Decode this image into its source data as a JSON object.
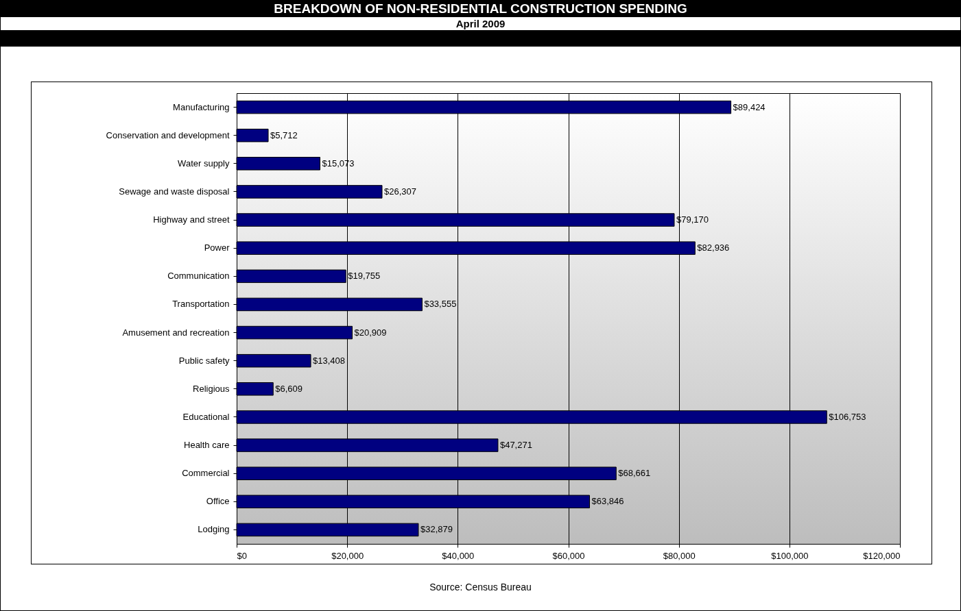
{
  "chart_data": {
    "type": "bar",
    "orientation": "horizontal",
    "title": "BREAKDOWN OF NON-RESIDENTIAL CONSTRUCTION SPENDING",
    "subtitle": "April 2009",
    "categories": [
      "Manufacturing",
      "Conservation and development",
      "Water supply",
      "Sewage and waste disposal",
      "Highway and street",
      "Power",
      "Communication",
      "Transportation",
      "Amusement and recreation",
      "Public safety",
      "Religious",
      "Educational",
      "Health care",
      "Commercial",
      "Office",
      "Lodging"
    ],
    "values": [
      89424,
      5712,
      15073,
      26307,
      79170,
      82936,
      19755,
      33555,
      20909,
      13408,
      6609,
      106753,
      47271,
      68661,
      63846,
      32879
    ],
    "value_labels": [
      "$89,424",
      "$5,712",
      "$15,073",
      "$26,307",
      "$79,170",
      "$82,936",
      "$19,755",
      "$33,555",
      "$20,909",
      "$13,408",
      "$6,609",
      "$106,753",
      "$47,271",
      "$68,661",
      "$63,846",
      "$32,879"
    ],
    "color": "#000080",
    "xlim": [
      0,
      120000
    ],
    "xticks": [
      {
        "value": 0,
        "label": "$0"
      },
      {
        "value": 20000,
        "label": "$20,000"
      },
      {
        "value": 40000,
        "label": "$40,000"
      },
      {
        "value": 60000,
        "label": "$60,000"
      },
      {
        "value": 80000,
        "label": "$80,000"
      },
      {
        "value": 100000,
        "label": "$100,000"
      },
      {
        "value": 120000,
        "label": "$120,000"
      }
    ],
    "grid": "x",
    "annotations": [
      "Source: Census Bureau"
    ]
  }
}
